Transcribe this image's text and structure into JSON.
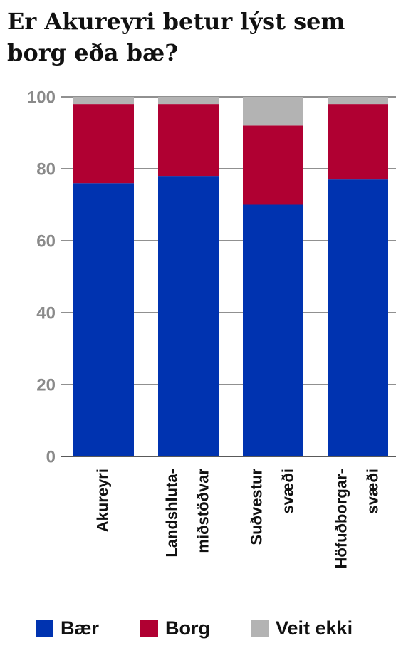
{
  "chart_data": {
    "type": "stacked_bar",
    "title": "Er Akureyri betur lýst sem borg eða bæ?",
    "categories": [
      [
        "Akureyri"
      ],
      [
        "Landshluta-",
        "miðstöðvar"
      ],
      [
        "Suðvestur",
        "svæði"
      ],
      [
        "Höfuðborgar-",
        "svæði"
      ]
    ],
    "series": [
      {
        "name": "Bær",
        "color": "#0033b0",
        "values": [
          76,
          78,
          70,
          77
        ]
      },
      {
        "name": "Borg",
        "color": "#b00032",
        "values": [
          22,
          20,
          22,
          21
        ]
      },
      {
        "name": "Veit ekki",
        "color": "#b3b3b3",
        "values": [
          2,
          2,
          8,
          2
        ]
      }
    ],
    "ylim": [
      0,
      100
    ],
    "yticks": [
      0,
      20,
      40,
      60,
      80,
      100
    ],
    "grid": true,
    "legend": "bottom"
  }
}
